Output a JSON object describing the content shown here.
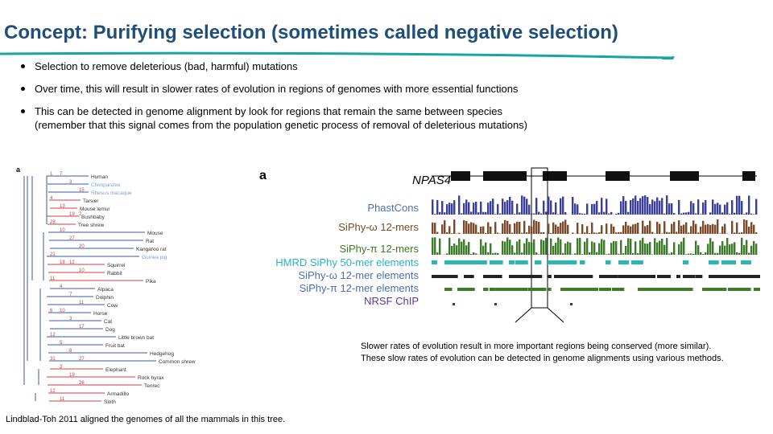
{
  "slide": {
    "title": "Concept: Purifying selection (sometimes called negative selection)",
    "bullets": [
      "Selection to remove deleterious (bad, harmful) mutations",
      "Over time, this will result in slower rates of evolution in regions of genomes with more essential functions",
      "This can be detected in genome alignment by look for regions that remain the same between species",
      "(remember that this signal comes from the population genetic process of removal of deleterious mutations)"
    ],
    "left_caption": "Lindblad-Toh 2011 aligned the genomes of all the mammals in this tree.",
    "right_caption_line1": "Slower rates of evolution result in more important regions being conserved (more similar).",
    "right_caption_line2": "These slow rates of evolution can be detected in genome alignments using various methods."
  },
  "tree": {
    "panel_letter": "a",
    "species": [
      "Human",
      "Chimpanzee",
      "Rhesus macaque",
      "Tarsier",
      "Mouse lemur",
      "Bushbaby",
      "Tree shrew",
      "Mouse",
      "Rat",
      "Kangaroo rat",
      "Guinea pig",
      "Squirrel",
      "Rabbit",
      "Pika",
      "Alpaca",
      "Dolphin",
      "Cow",
      "Horse",
      "Cat",
      "Dog",
      "Little brown bat",
      "Fruit bat",
      "Hedgehog",
      "Common shrew",
      "Elephant",
      "Rock hyrax",
      "Tenrec",
      "Armadillo",
      "Sloth"
    ],
    "branch_numbers": [
      "1",
      "7",
      "3",
      "15",
      "4",
      "13",
      "19",
      "2",
      "28",
      "10",
      "27",
      "20",
      "21",
      "18",
      "12",
      "10",
      "11",
      "4",
      "7",
      "11",
      "6",
      "10",
      "3",
      "17",
      "12",
      "5",
      "8",
      "27",
      "31",
      "3",
      "19",
      "26",
      "12",
      "11"
    ]
  },
  "track_panel": {
    "panel_letter": "a",
    "gene": "NPAS4",
    "track_labels": [
      "PhastCons",
      "SiPhy-ω 12-mers",
      "SiPhy-π 12-mers",
      "HMRD SiPhy 50-mer elements",
      "SiPhy-ω 12-mer elements",
      "SiPhy-π 12-mer elements",
      "NRSF ChIP"
    ],
    "colors": {
      "phastcons": "#3b3f99",
      "omega": "#7a4a2a",
      "pi": "#3d7a2a",
      "hmrd": "#2cb5b5",
      "nrsf": "#6a1a6a",
      "label_blue": "#4f6fb0",
      "label_teal": "#27b3c2",
      "label_purple": "#5b3a91",
      "title_blue": "#1f4e79",
      "underline_teal": "#1aa3a3"
    }
  }
}
